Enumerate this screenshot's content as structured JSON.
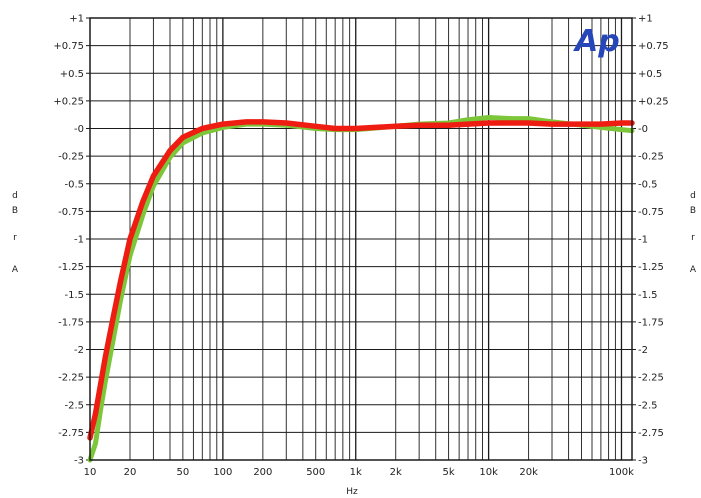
{
  "chart_data": {
    "type": "line",
    "title": "",
    "logo_text": "Ap",
    "xlabel": "Hz",
    "ylabel_left": [
      "d",
      "B",
      "r",
      "A"
    ],
    "ylabel_right": [
      "d",
      "B",
      "r",
      "A"
    ],
    "x_scale": "log",
    "xlim": [
      10,
      120000
    ],
    "ylim": [
      -3,
      1
    ],
    "grid": true,
    "x_ticks": [
      {
        "value": 10,
        "label": "10"
      },
      {
        "value": 20,
        "label": "20"
      },
      {
        "value": 50,
        "label": "50"
      },
      {
        "value": 100,
        "label": "100"
      },
      {
        "value": 200,
        "label": "200"
      },
      {
        "value": 500,
        "label": "500"
      },
      {
        "value": 1000,
        "label": "1k"
      },
      {
        "value": 2000,
        "label": "2k"
      },
      {
        "value": 5000,
        "label": "5k"
      },
      {
        "value": 10000,
        "label": "10k"
      },
      {
        "value": 20000,
        "label": "20k"
      },
      {
        "value": 100000,
        "label": "100k"
      }
    ],
    "y_ticks": [
      {
        "value": 1,
        "label": "+1"
      },
      {
        "value": 0.75,
        "label": "+0.75"
      },
      {
        "value": 0.5,
        "label": "+0.5"
      },
      {
        "value": 0.25,
        "label": "+0.25"
      },
      {
        "value": 0,
        "label": "-0"
      },
      {
        "value": -0.25,
        "label": "-0.25"
      },
      {
        "value": -0.5,
        "label": "-0.5"
      },
      {
        "value": -0.75,
        "label": "-0.75"
      },
      {
        "value": -1,
        "label": "-1"
      },
      {
        "value": -1.25,
        "label": "-1.25"
      },
      {
        "value": -1.5,
        "label": "-1.5"
      },
      {
        "value": -1.75,
        "label": "-1.75"
      },
      {
        "value": -2,
        "label": "-2"
      },
      {
        "value": -2.25,
        "label": "-2.25"
      },
      {
        "value": -2.5,
        "label": "-2.5"
      },
      {
        "value": -2.75,
        "label": "-2.75"
      },
      {
        "value": -3,
        "label": "-3"
      }
    ],
    "series": [
      {
        "color": "#7cc63a",
        "points": [
          [
            10,
            -3.0
          ],
          [
            11,
            -2.85
          ],
          [
            12,
            -2.55
          ],
          [
            13,
            -2.3
          ],
          [
            15,
            -1.9
          ],
          [
            17,
            -1.55
          ],
          [
            20,
            -1.15
          ],
          [
            25,
            -0.78
          ],
          [
            30,
            -0.52
          ],
          [
            40,
            -0.26
          ],
          [
            50,
            -0.13
          ],
          [
            70,
            -0.04
          ],
          [
            100,
            0.01
          ],
          [
            150,
            0.04
          ],
          [
            200,
            0.04
          ],
          [
            300,
            0.03
          ],
          [
            500,
            0.0
          ],
          [
            700,
            -0.01
          ],
          [
            1000,
            -0.01
          ],
          [
            2000,
            0.02
          ],
          [
            3000,
            0.04
          ],
          [
            5000,
            0.05
          ],
          [
            7000,
            0.08
          ],
          [
            10000,
            0.1
          ],
          [
            15000,
            0.09
          ],
          [
            20000,
            0.09
          ],
          [
            30000,
            0.06
          ],
          [
            50000,
            0.03
          ],
          [
            70000,
            0.01
          ],
          [
            100000,
            -0.01
          ],
          [
            120000,
            -0.02
          ]
        ]
      },
      {
        "color": "#ef1c12",
        "points": [
          [
            10,
            -2.8
          ],
          [
            11,
            -2.58
          ],
          [
            12,
            -2.32
          ],
          [
            13,
            -2.08
          ],
          [
            15,
            -1.7
          ],
          [
            17,
            -1.38
          ],
          [
            20,
            -1.0
          ],
          [
            25,
            -0.66
          ],
          [
            30,
            -0.43
          ],
          [
            40,
            -0.2
          ],
          [
            50,
            -0.08
          ],
          [
            70,
            0.0
          ],
          [
            100,
            0.04
          ],
          [
            150,
            0.06
          ],
          [
            200,
            0.06
          ],
          [
            300,
            0.05
          ],
          [
            500,
            0.02
          ],
          [
            700,
            0.0
          ],
          [
            1000,
            0.0
          ],
          [
            2000,
            0.02
          ],
          [
            3000,
            0.03
          ],
          [
            5000,
            0.03
          ],
          [
            7000,
            0.04
          ],
          [
            10000,
            0.05
          ],
          [
            15000,
            0.05
          ],
          [
            20000,
            0.05
          ],
          [
            30000,
            0.04
          ],
          [
            50000,
            0.04
          ],
          [
            70000,
            0.04
          ],
          [
            100000,
            0.05
          ],
          [
            120000,
            0.05
          ]
        ]
      }
    ]
  }
}
